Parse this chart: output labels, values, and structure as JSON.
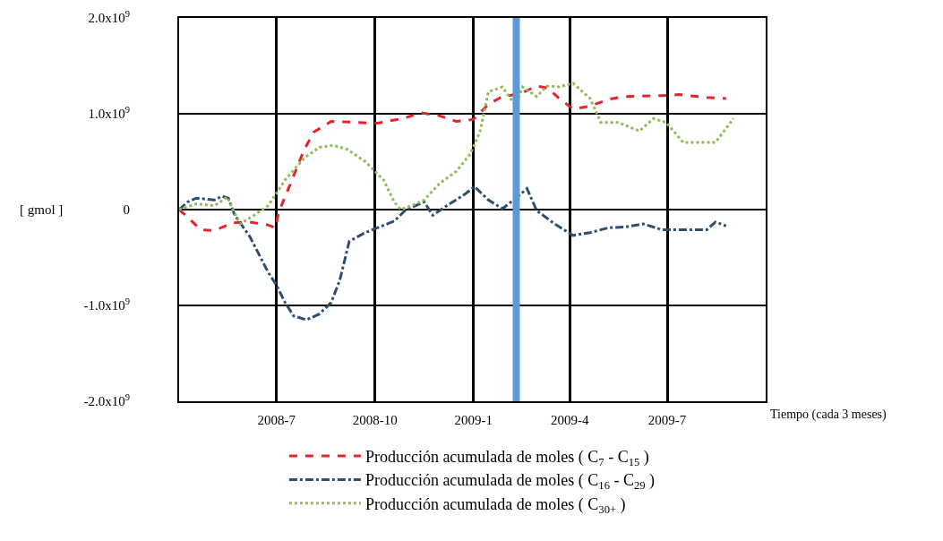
{
  "chart_data": {
    "type": "line",
    "xlabel": "Tiempo (cada 3 meses)",
    "ylabel": "[ gmol ]",
    "xlim": [
      "2008-04-01",
      "2009-10-01"
    ],
    "xticks": [
      {
        "value": "2008-07-01",
        "label": "2008-7"
      },
      {
        "value": "2008-10-01",
        "label": "2008-10"
      },
      {
        "value": "2009-01-01",
        "label": "2009-1"
      },
      {
        "value": "2009-04-01",
        "label": "2009-4"
      },
      {
        "value": "2009-07-01",
        "label": "2009-7"
      }
    ],
    "ylim": [
      -2000000000,
      2000000000
    ],
    "yticks": [
      {
        "value": -2000000000,
        "label": "-2.0x10$^{9}$"
      },
      {
        "value": -1000000000,
        "label": "-1.0x10$^{9}$"
      },
      0,
      {
        "value": 1000000000,
        "label": "1.0x10$^{9}$"
      },
      {
        "value": 2000000000,
        "label": "2.0x10$^{9}$"
      }
    ],
    "grid": true,
    "legend": "bottom",
    "ref_lines": [
      {
        "axis": "x",
        "value": "2009-02-10",
        "label": null,
        "color": "#5b9bd5"
      }
    ],
    "series": [
      {
        "name": "Producción acumulada de moles ( C$_{7}$ - C$_{15}$ )",
        "color": "#e8222a",
        "line_style": "dashed",
        "x": [
          "2008-04-01",
          "2008-04-09",
          "2008-04-21",
          "2008-05-04",
          "2008-05-20",
          "2008-06-06",
          "2008-06-23",
          "2008-06-30",
          "2008-07-03",
          "2008-07-14",
          "2008-07-27",
          "2008-08-05",
          "2008-08-21",
          "2008-09-15",
          "2008-10-02",
          "2008-10-27",
          "2008-11-13",
          "2008-11-30",
          "2008-12-16",
          "2009-01-01",
          "2009-01-15",
          "2009-01-28",
          "2009-02-14",
          "2009-03-01",
          "2009-03-11",
          "2009-03-22",
          "2009-04-04",
          "2009-04-20",
          "2009-05-07",
          "2009-05-23",
          "2009-06-26",
          "2009-07-12",
          "2009-08-07",
          "2009-08-25"
        ],
        "values": [
          0,
          -80000000,
          -210000000,
          -220000000,
          -140000000,
          -130000000,
          -160000000,
          -190000000,
          -30000000,
          270000000,
          630000000,
          810000000,
          920000000,
          910000000,
          900000000,
          950000000,
          1010000000,
          980000000,
          920000000,
          940000000,
          1100000000,
          1180000000,
          1210000000,
          1290000000,
          1270000000,
          1160000000,
          1050000000,
          1080000000,
          1150000000,
          1180000000,
          1190000000,
          1200000000,
          1170000000,
          1160000000
        ]
      },
      {
        "name": "Producción acumulada de moles ( C$_{16}$ - C$_{29}$ )",
        "color": "#2e4f6e",
        "line_style": "dashdot",
        "x": [
          "2008-04-01",
          "2008-04-09",
          "2008-04-17",
          "2008-05-04",
          "2008-05-11",
          "2008-05-17",
          "2008-05-23",
          "2008-06-06",
          "2008-06-23",
          "2008-07-01",
          "2008-07-09",
          "2008-07-17",
          "2008-07-29",
          "2008-08-10",
          "2008-08-21",
          "2008-08-29",
          "2008-09-07",
          "2008-09-22",
          "2008-10-19",
          "2008-10-30",
          "2008-11-16",
          "2008-11-24",
          "2008-12-07",
          "2008-12-24",
          "2009-01-02",
          "2009-01-15",
          "2009-01-28",
          "2009-02-11",
          "2009-02-20",
          "2009-03-01",
          "2009-03-18",
          "2009-04-04",
          "2009-04-20",
          "2009-05-07",
          "2009-05-23",
          "2009-06-09",
          "2009-06-26",
          "2009-07-12",
          "2009-08-07",
          "2009-08-15",
          "2009-08-25"
        ],
        "values": [
          0,
          80000000,
          120000000,
          100000000,
          140000000,
          120000000,
          -60000000,
          -280000000,
          -650000000,
          -790000000,
          -970000000,
          -1110000000,
          -1150000000,
          -1090000000,
          -970000000,
          -740000000,
          -330000000,
          -240000000,
          -120000000,
          0,
          80000000,
          -60000000,
          40000000,
          160000000,
          240000000,
          100000000,
          10000000,
          130000000,
          220000000,
          -10000000,
          -150000000,
          -270000000,
          -240000000,
          -190000000,
          -180000000,
          -150000000,
          -210000000,
          -210000000,
          -210000000,
          -130000000,
          -170000000
        ]
      },
      {
        "name": "Producción acumulada de moles ( C$_{30+}$ )",
        "color": "#8fbc5a",
        "line_style": "dotted",
        "x": [
          "2008-04-01",
          "2008-04-17",
          "2008-05-04",
          "2008-05-16",
          "2008-05-20",
          "2008-05-28",
          "2008-06-10",
          "2008-06-23",
          "2008-07-01",
          "2008-07-09",
          "2008-07-27",
          "2008-08-10",
          "2008-08-23",
          "2008-09-05",
          "2008-09-22",
          "2008-10-09",
          "2008-10-19",
          "2008-10-25",
          "2008-11-04",
          "2008-11-16",
          "2008-11-30",
          "2008-12-16",
          "2008-12-29",
          "2009-01-07",
          "2009-01-15",
          "2009-01-28",
          "2009-02-09",
          "2009-02-16",
          "2009-03-01",
          "2009-03-11",
          "2009-03-22",
          "2009-04-04",
          "2009-04-20",
          "2009-04-30",
          "2009-05-16",
          "2009-06-05",
          "2009-06-18",
          "2009-06-30",
          "2009-07-16",
          "2009-08-15",
          "2009-09-01"
        ],
        "values": [
          0,
          60000000,
          40000000,
          130000000,
          30000000,
          -150000000,
          -60000000,
          40000000,
          170000000,
          310000000,
          540000000,
          650000000,
          670000000,
          630000000,
          500000000,
          310000000,
          80000000,
          0,
          40000000,
          100000000,
          270000000,
          400000000,
          580000000,
          810000000,
          1230000000,
          1280000000,
          1090000000,
          1280000000,
          1180000000,
          1290000000,
          1280000000,
          1320000000,
          1160000000,
          910000000,
          910000000,
          820000000,
          950000000,
          910000000,
          700000000,
          700000000,
          950000000
        ]
      }
    ]
  }
}
